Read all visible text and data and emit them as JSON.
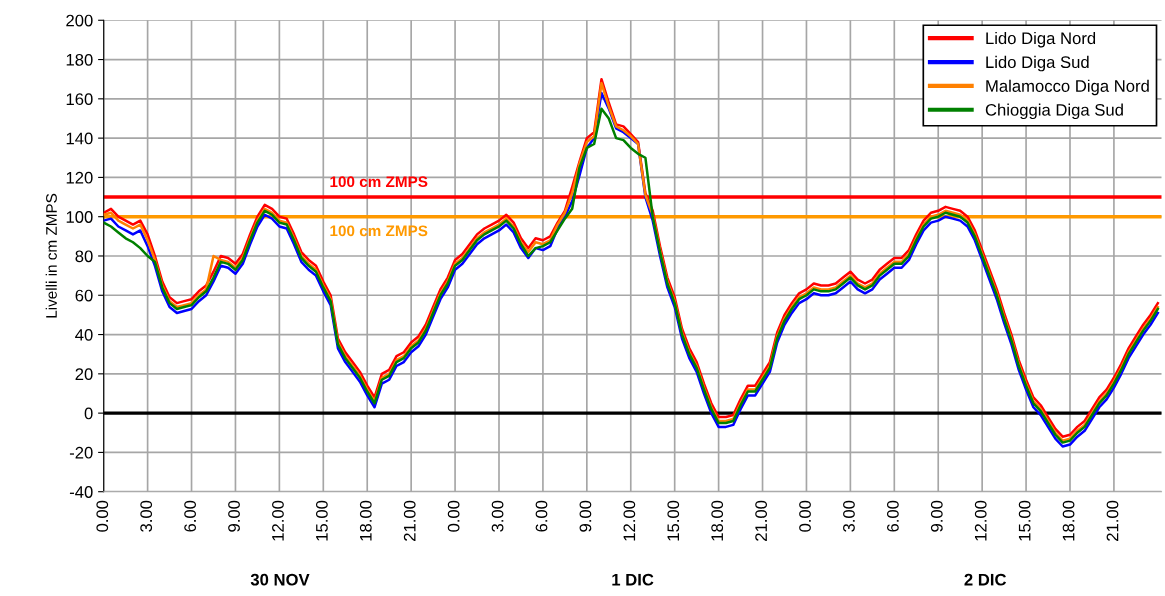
{
  "chart_data": {
    "type": "line",
    "ylabel": "Livelli in cm ZMPS",
    "categories": [
      "0.00",
      null,
      null,
      null,
      null,
      null,
      "3.00",
      null,
      null,
      null,
      null,
      null,
      "6.00",
      null,
      null,
      null,
      null,
      null,
      "9.00",
      null,
      null,
      null,
      null,
      null,
      "12.00",
      null,
      null,
      null,
      null,
      null,
      "15.00",
      null,
      null,
      null,
      null,
      null,
      "18.00",
      null,
      null,
      null,
      null,
      null,
      "21.00",
      null,
      null,
      null,
      null,
      null,
      "0.00",
      null,
      null,
      null,
      null,
      null,
      "3.00",
      null,
      null,
      null,
      null,
      null,
      "6.00",
      null,
      null,
      null,
      null,
      null,
      "9.00",
      null,
      null,
      null,
      null,
      null,
      "12.00",
      null,
      null,
      null,
      null,
      null,
      "15.00",
      null,
      null,
      null,
      null,
      null,
      "18.00",
      null,
      null,
      null,
      null,
      null,
      "21.00",
      null,
      null,
      null,
      null,
      null,
      "0.00",
      null,
      null,
      null,
      null,
      null,
      "3.00",
      null,
      null,
      null,
      null,
      null,
      "6.00",
      null,
      null,
      null,
      null,
      null,
      "9.00",
      null,
      null,
      null,
      null,
      null,
      "12.00",
      null,
      null,
      null,
      null,
      null,
      "15.00",
      null,
      null,
      null,
      null,
      null,
      "18.00",
      null,
      null,
      null,
      null,
      null,
      "21.00",
      null,
      null,
      null,
      null,
      null,
      null
    ],
    "annotations": [
      "30 NOV",
      "1 DIC",
      "2 DIC"
    ],
    "series": [
      {
        "name": "Lido Diga Nord",
        "color": "#ff0000",
        "values": [
          102,
          104,
          100,
          98,
          96,
          98,
          91,
          80,
          67,
          59,
          56,
          57,
          58,
          62,
          65,
          72,
          80,
          79,
          76,
          81,
          91,
          100,
          106,
          104,
          100,
          99,
          91,
          82,
          78,
          75,
          67,
          60,
          38,
          31,
          26,
          21,
          14,
          8,
          20,
          22,
          29,
          31,
          36,
          39,
          45,
          54,
          63,
          69,
          78,
          81,
          86,
          91,
          94,
          96,
          98,
          101,
          97,
          89,
          84,
          89,
          88,
          90,
          97,
          103,
          115,
          128,
          140,
          143,
          170,
          158,
          147,
          146,
          142,
          138,
          112,
          103,
          85,
          69,
          59,
          43,
          33,
          26,
          15,
          5,
          -2,
          -2,
          -1,
          7,
          14,
          14,
          20,
          26,
          41,
          50,
          56,
          61,
          63,
          66,
          65,
          65,
          66,
          69,
          72,
          68,
          66,
          68,
          73,
          76,
          79,
          79,
          83,
          91,
          98,
          102,
          103,
          105,
          104,
          103,
          100,
          93,
          83,
          73,
          63,
          51,
          40,
          27,
          17,
          8,
          4,
          -2,
          -8,
          -12,
          -11,
          -7,
          -4,
          2,
          8,
          12,
          18,
          25,
          33,
          39,
          45,
          50,
          56
        ]
      },
      {
        "name": "Lido Diga Sud",
        "color": "#0000ff",
        "values": [
          98,
          99,
          95,
          93,
          91,
          93,
          85,
          75,
          62,
          54,
          51,
          52,
          53,
          57,
          60,
          67,
          75,
          74,
          71,
          76,
          86,
          95,
          101,
          99,
          95,
          94,
          86,
          77,
          73,
          70,
          62,
          55,
          33,
          26,
          21,
          16,
          9,
          3,
          15,
          17,
          24,
          26,
          31,
          34,
          40,
          49,
          58,
          64,
          73,
          76,
          81,
          86,
          89,
          91,
          93,
          96,
          92,
          84,
          79,
          84,
          83,
          85,
          94,
          100,
          108,
          121,
          135,
          140,
          163,
          155,
          145,
          143,
          140,
          137,
          110,
          98,
          80,
          64,
          54,
          38,
          28,
          21,
          10,
          0,
          -7,
          -7,
          -6,
          2,
          9,
          9,
          15,
          21,
          36,
          45,
          51,
          56,
          58,
          61,
          60,
          60,
          61,
          64,
          67,
          63,
          61,
          63,
          68,
          71,
          74,
          74,
          78,
          86,
          93,
          97,
          98,
          100,
          99,
          98,
          95,
          88,
          78,
          68,
          58,
          46,
          35,
          22,
          12,
          3,
          -1,
          -7,
          -13,
          -17,
          -16,
          -12,
          -9,
          -3,
          3,
          7,
          13,
          20,
          28,
          34,
          40,
          45,
          51
        ]
      },
      {
        "name": "Malamocco Diga Nord",
        "color": "#ff8000",
        "values": [
          101,
          102,
          98,
          96,
          94,
          96,
          88,
          78,
          65,
          57,
          54,
          55,
          56,
          60,
          63,
          80,
          78,
          77,
          74,
          79,
          89,
          98,
          104,
          102,
          98,
          97,
          89,
          80,
          76,
          73,
          65,
          58,
          36,
          29,
          24,
          19,
          12,
          6,
          18,
          20,
          27,
          29,
          34,
          37,
          43,
          52,
          61,
          67,
          76,
          79,
          84,
          89,
          92,
          94,
          96,
          99,
          95,
          87,
          82,
          87,
          86,
          88,
          96,
          102,
          112,
          127,
          138,
          141,
          168,
          156,
          146,
          144,
          141,
          137,
          111,
          101,
          83,
          67,
          57,
          41,
          31,
          24,
          13,
          3,
          -4,
          -4,
          -3,
          5,
          12,
          12,
          18,
          24,
          39,
          48,
          54,
          59,
          61,
          64,
          63,
          63,
          64,
          67,
          70,
          66,
          64,
          66,
          71,
          74,
          77,
          77,
          81,
          89,
          96,
          100,
          101,
          103,
          102,
          101,
          98,
          91,
          81,
          71,
          61,
          49,
          38,
          25,
          15,
          6,
          2,
          -4,
          -10,
          -14,
          -13,
          -9,
          -6,
          0,
          6,
          10,
          16,
          23,
          31,
          37,
          43,
          48,
          54
        ]
      },
      {
        "name": "Chioggia Diga Sud",
        "color": "#008000",
        "values": [
          97,
          95,
          92,
          89,
          87,
          84,
          80,
          77,
          64,
          56,
          53,
          54,
          55,
          59,
          62,
          69,
          77,
          76,
          73,
          78,
          88,
          97,
          103,
          101,
          97,
          96,
          88,
          79,
          75,
          72,
          64,
          57,
          35,
          28,
          23,
          18,
          11,
          5,
          17,
          19,
          26,
          28,
          33,
          36,
          42,
          51,
          60,
          66,
          75,
          78,
          83,
          88,
          91,
          93,
          95,
          98,
          94,
          86,
          80,
          84,
          85,
          87,
          93,
          99,
          104,
          125,
          135,
          137,
          155,
          150,
          140,
          139,
          135,
          132,
          130,
          100,
          82,
          66,
          56,
          40,
          30,
          23,
          12,
          2,
          -5,
          -5,
          -4,
          4,
          11,
          11,
          17,
          23,
          38,
          47,
          53,
          58,
          60,
          63,
          62,
          62,
          63,
          66,
          69,
          65,
          63,
          65,
          70,
          73,
          76,
          76,
          80,
          88,
          95,
          99,
          100,
          102,
          101,
          100,
          97,
          90,
          80,
          70,
          60,
          48,
          37,
          24,
          14,
          5,
          1,
          -5,
          -11,
          -15,
          -14,
          -10,
          -7,
          -1,
          5,
          9,
          15,
          22,
          30,
          36,
          42,
          47,
          53
        ]
      }
    ],
    "ylim": [
      -40,
      200
    ],
    "yticks": [
      -40,
      -20,
      0,
      20,
      40,
      60,
      80,
      100,
      120,
      140,
      160,
      180,
      200
    ],
    "ref_lines": [
      {
        "axis": "y",
        "value": 110,
        "label": "100 cm ZMPS",
        "color": "#ff0000"
      },
      {
        "axis": "y",
        "value": 100,
        "label": "100 cm ZMPS",
        "color": "#ff9900"
      },
      {
        "axis": "y",
        "value": 0,
        "label": null,
        "color": "#000000"
      }
    ],
    "grid": true,
    "legend": "top right",
    "marker": "none",
    "line_style": "solid"
  }
}
